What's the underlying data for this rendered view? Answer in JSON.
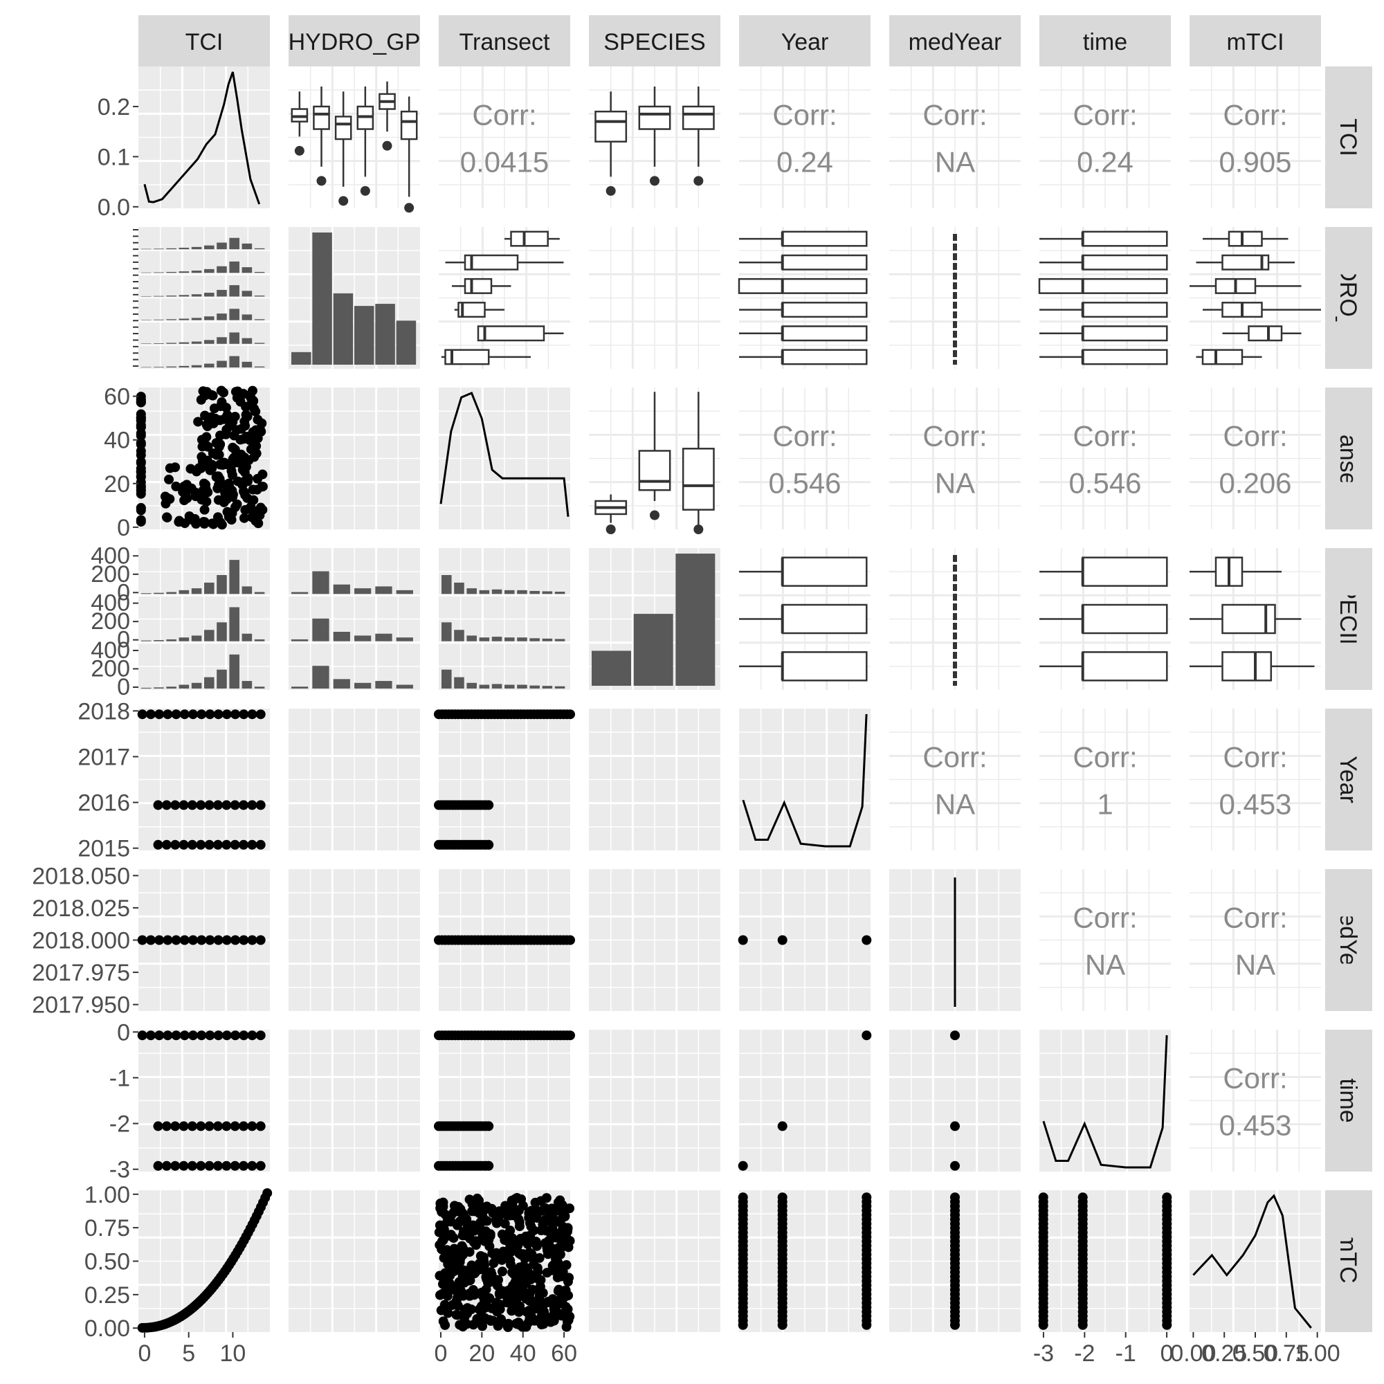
{
  "chart_data": {
    "type": "scatter-matrix",
    "variables": [
      "TCI",
      "HYDRO_GP",
      "Transect",
      "SPECIES",
      "Year",
      "medYear",
      "time",
      "mTCI"
    ],
    "column_strips": [
      "TCI",
      "HYDRO_GP",
      "Transect",
      "SPECIES",
      "Year",
      "medYear",
      "time",
      "mTCI"
    ],
    "row_strips": [
      "TCI",
      "HYDRO_GP",
      "Transect",
      "SPECIES",
      "Year",
      "medYear",
      "time",
      "mTCI"
    ],
    "correlations": [
      {
        "row": "TCI",
        "col": "Transect",
        "label": "Corr:",
        "value": "0.0415"
      },
      {
        "row": "TCI",
        "col": "Year",
        "label": "Corr:",
        "value": "0.24"
      },
      {
        "row": "TCI",
        "col": "medYear",
        "label": "Corr:",
        "value": "NA"
      },
      {
        "row": "TCI",
        "col": "time",
        "label": "Corr:",
        "value": "0.24"
      },
      {
        "row": "TCI",
        "col": "mTCI",
        "label": "Corr:",
        "value": "0.905"
      },
      {
        "row": "Transect",
        "col": "Year",
        "label": "Corr:",
        "value": "0.546"
      },
      {
        "row": "Transect",
        "col": "medYear",
        "label": "Corr:",
        "value": "NA"
      },
      {
        "row": "Transect",
        "col": "time",
        "label": "Corr:",
        "value": "0.546"
      },
      {
        "row": "Transect",
        "col": "mTCI",
        "label": "Corr:",
        "value": "0.206"
      },
      {
        "row": "Year",
        "col": "medYear",
        "label": "Corr:",
        "value": "NA"
      },
      {
        "row": "Year",
        "col": "time",
        "label": "Corr:",
        "value": "1"
      },
      {
        "row": "Year",
        "col": "mTCI",
        "label": "Corr:",
        "value": "0.453"
      },
      {
        "row": "medYear",
        "col": "time",
        "label": "Corr:",
        "value": "NA"
      },
      {
        "row": "medYear",
        "col": "mTCI",
        "label": "Corr:",
        "value": "NA"
      },
      {
        "row": "time",
        "col": "mTCI",
        "label": "Corr:",
        "value": "0.453"
      }
    ],
    "row_axis_ticks": {
      "TCI": [
        "0.0",
        "0.1",
        "0.2"
      ],
      "Transect": [
        "0",
        "20",
        "40",
        "60"
      ],
      "SPECIES": [
        "0",
        "200",
        "400",
        "0",
        "200",
        "400",
        "0",
        "200",
        "400"
      ],
      "Year": [
        "2015",
        "2016",
        "2017",
        "2018"
      ],
      "medYear": [
        "2017.950",
        "2017.975",
        "2018.000",
        "2018.025",
        "2018.050"
      ],
      "time": [
        "-3",
        "-2",
        "-1",
        "0"
      ],
      "mTCI": [
        "0.00",
        "0.25",
        "0.50",
        "0.75",
        "1.00"
      ]
    },
    "col_axis_ticks": {
      "TCI": [
        "0",
        "5",
        "10"
      ],
      "Transect": [
        "0",
        "20",
        "40",
        "60"
      ],
      "time": [
        "-3",
        "-2",
        "-1",
        "0"
      ],
      "mTCI": [
        "0.00",
        "0.25",
        "0.50",
        "0.75",
        "1.00"
      ]
    },
    "diagonal": {
      "TCI": {
        "type": "density",
        "x": [
          0,
          0.5,
          1,
          2,
          3,
          4,
          5,
          6,
          7,
          8,
          9,
          9.5,
          10,
          10.5,
          11,
          12,
          13
        ],
        "y": [
          0.04,
          0.005,
          0.004,
          0.01,
          0.03,
          0.05,
          0.07,
          0.09,
          0.12,
          0.14,
          0.2,
          0.24,
          0.265,
          0.21,
          0.15,
          0.05,
          0.0
        ]
      },
      "HYDRO_GP": {
        "type": "bar",
        "values": [
          60,
          630,
          340,
          280,
          290,
          210
        ]
      },
      "Transect": {
        "type": "density",
        "x": [
          0,
          5,
          10,
          15,
          20,
          25,
          30,
          40,
          50,
          60,
          62
        ],
        "y": [
          0.005,
          0.022,
          0.03,
          0.031,
          0.025,
          0.013,
          0.011,
          0.011,
          0.011,
          0.011,
          0.002
        ]
      },
      "SPECIES": {
        "type": "bar",
        "values": [
          180,
          370,
          680
        ]
      },
      "Year": {
        "type": "density",
        "x": [
          2015,
          2015.3,
          2015.6,
          2016,
          2016.4,
          2017,
          2017.6,
          2017.9,
          2018
        ],
        "y": [
          0.35,
          0.05,
          0.05,
          0.33,
          0.02,
          0.0,
          0.0,
          0.3,
          1.0
        ]
      },
      "medYear": {
        "type": "density",
        "x": [
          2018,
          2018
        ],
        "y": [
          0,
          1
        ]
      },
      "time": {
        "type": "density",
        "x": [
          -3,
          -2.7,
          -2.4,
          -2,
          -1.6,
          -1,
          -0.4,
          -0.1,
          0
        ],
        "y": [
          0.35,
          0.05,
          0.05,
          0.33,
          0.02,
          0.0,
          0.0,
          0.3,
          1.0
        ]
      },
      "mTCI": {
        "type": "density",
        "x": [
          0,
          0.05,
          0.15,
          0.27,
          0.4,
          0.5,
          0.6,
          0.65,
          0.72,
          0.82,
          0.95
        ],
        "y": [
          0.4,
          0.45,
          0.55,
          0.4,
          0.55,
          0.7,
          0.95,
          1.0,
          0.85,
          0.15,
          0.0
        ]
      }
    },
    "boxplots": {
      "TCI_by_HYDRO_GP": [
        {
          "q1": 0.17,
          "med": 0.18,
          "q3": 0.195,
          "lo": 0.14,
          "hi": 0.23
        },
        {
          "q1": 0.155,
          "med": 0.185,
          "q3": 0.2,
          "lo": 0.08,
          "hi": 0.24
        },
        {
          "q1": 0.135,
          "med": 0.165,
          "q3": 0.18,
          "lo": 0.04,
          "hi": 0.23
        },
        {
          "q1": 0.155,
          "med": 0.18,
          "q3": 0.2,
          "lo": 0.06,
          "hi": 0.24
        },
        {
          "q1": 0.195,
          "med": 0.21,
          "q3": 0.225,
          "lo": 0.15,
          "hi": 0.25
        },
        {
          "q1": 0.135,
          "med": 0.17,
          "q3": 0.19,
          "lo": 0.02,
          "hi": 0.22
        }
      ],
      "TCI_by_SPECIES": [
        {
          "q1": 0.13,
          "med": 0.17,
          "q3": 0.19,
          "lo": 0.06,
          "hi": 0.23
        },
        {
          "q1": 0.155,
          "med": 0.185,
          "q3": 0.2,
          "lo": 0.08,
          "hi": 0.24
        },
        {
          "q1": 0.155,
          "med": 0.185,
          "q3": 0.2,
          "lo": 0.08,
          "hi": 0.24
        }
      ],
      "Transect_by_SPECIES": [
        {
          "q1": 6,
          "med": 9,
          "q3": 12,
          "lo": 2,
          "hi": 15
        },
        {
          "q1": 17,
          "med": 21,
          "q3": 35,
          "lo": 12,
          "hi": 62
        },
        {
          "q1": 8,
          "med": 19,
          "q3": 36,
          "lo": 1,
          "hi": 62
        }
      ]
    },
    "grid": true,
    "panel_background": "#ebebeb",
    "strip_background": "#d9d9d9",
    "mark_color": "#000000",
    "bar_color": "#595959"
  }
}
